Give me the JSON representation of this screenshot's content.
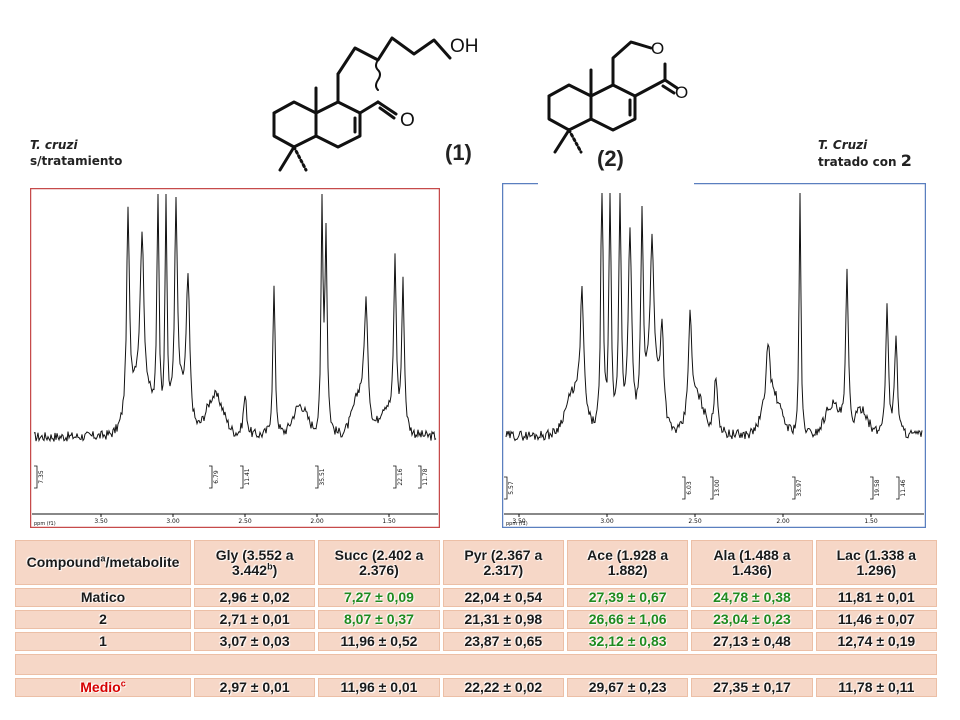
{
  "left_label": {
    "species": "T. cruzi",
    "condition": "s/tratamiento"
  },
  "right_label": {
    "species": "T. Cruzi",
    "condition_prefix": "tratado con ",
    "condition_compound": "2"
  },
  "compound1_label": "(1)",
  "compound2_label": "(2)",
  "mol1_oh": "OH",
  "mol1_o": "O",
  "mol2_o_ring": "O",
  "mol2_o_carbonyl": "O",
  "spectrum_left": {
    "ticks": [
      "3.50",
      "3.00",
      "2.50",
      "2.00",
      "1.50"
    ],
    "axis_unit": "ppm (f1)",
    "integrals": [
      "7.35",
      "6.79",
      "11.41",
      "35.51",
      "22.16",
      "11.78"
    ]
  },
  "spectrum_right": {
    "ticks": [
      "3.50",
      "3.00",
      "2.50",
      "2.00",
      "1.50"
    ],
    "axis_unit": "ppm (f1)",
    "integrals": [
      "5.57",
      "6.03",
      "13.00",
      "33.97",
      "19.58",
      "11.46"
    ]
  },
  "table": {
    "header": {
      "first_main": "Compound",
      "first_sup": "a",
      "first_tail": "/metabolite",
      "gly_main": "Gly (3.552 a 3.442",
      "gly_sup": "b",
      "gly_tail": ")",
      "succ": "Succ (2.402 a 2.376)",
      "pyr": "Pyr (2.367 a 2.317)",
      "ace": "Ace (1.928 a 1.882)",
      "ala": "Ala (1.488 a 1.436)",
      "lac": "Lac (1.338 a 1.296)"
    },
    "rows": [
      {
        "name": "Matico",
        "gly": "2,96 ± 0,02",
        "succ": "7,27 ± 0,09",
        "pyr": "22,04 ± 0,54",
        "ace": "27,39 ± 0,67",
        "ala": "24,78 ± 0,38",
        "lac": "11,81 ± 0,01"
      },
      {
        "name": "2",
        "gly": "2,71 ± 0,01",
        "succ": "8,07 ± 0,37",
        "pyr": "21,31 ± 0,98",
        "ace": "26,66 ± 1,06",
        "ala": "23,04 ± 0,23",
        "lac": "11,46 ± 0,07"
      },
      {
        "name": "1",
        "gly": "3,07 ± 0,03",
        "succ": "11,96 ± 0,52",
        "pyr": "23,87 ± 0,65",
        "ace": "32,12 ± 0,83",
        "ala": "27,13 ± 0,48",
        "lac": "12,74 ± 0,19"
      }
    ],
    "medio": {
      "name": "Medio",
      "sup": "c",
      "gly": "2,97 ± 0,01",
      "succ": "11,96 ± 0,01",
      "pyr": "22,22 ± 0,02",
      "ace": "29,67 ± 0,23",
      "ala": "27,35 ± 0,17",
      "lac": "11,78 ± 0,11"
    },
    "colors": {
      "cell_bg": "#f6d7c7",
      "highlight_green": "#1f8a1f",
      "medio_red": "#d60000"
    }
  }
}
